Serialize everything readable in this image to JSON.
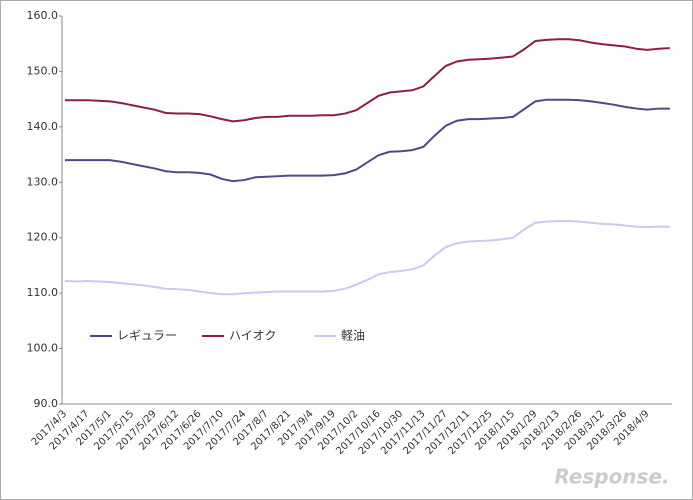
{
  "chart_data": {
    "type": "line",
    "categories": [
      "2017/4/3",
      null,
      "2017/4/17",
      null,
      "2017/5/1",
      null,
      "2017/5/15",
      null,
      "2017/5/29",
      null,
      "2017/6/12",
      null,
      "2017/6/26",
      null,
      "2017/7/10",
      null,
      "2017/7/24",
      null,
      "2017/8/7",
      null,
      "2017/8/21",
      null,
      "2017/9/4",
      null,
      "2017/9/19",
      null,
      "2017/10/2",
      null,
      "2017/10/16",
      null,
      "2017/10/30",
      null,
      "2017/11/13",
      null,
      "2017/11/27",
      null,
      "2017/12/11",
      null,
      "2017/12/25",
      null,
      "2018/1/15",
      null,
      "2018/1/29",
      null,
      "2018/2/13",
      null,
      "2018/2/26",
      null,
      "2018/3/12",
      null,
      "2018/3/26",
      null,
      "2018/4/9",
      null,
      null
    ],
    "series": [
      {
        "name": "レギュラー",
        "color": "#4b4b88",
        "values": [
          134.0,
          134.0,
          134.0,
          134.0,
          134.0,
          133.7,
          133.3,
          132.9,
          132.5,
          132.0,
          131.8,
          131.8,
          131.7,
          131.4,
          130.6,
          130.2,
          130.4,
          130.9,
          131.0,
          131.1,
          131.2,
          131.2,
          131.2,
          131.2,
          131.3,
          131.6,
          132.3,
          133.6,
          134.9,
          135.5,
          135.6,
          135.8,
          136.4,
          138.4,
          140.2,
          141.1,
          141.4,
          141.4,
          141.5,
          141.6,
          141.8,
          143.2,
          144.6,
          144.9,
          144.9,
          144.9,
          144.8,
          144.6,
          144.3,
          144.0,
          143.6,
          143.3,
          143.1,
          143.3,
          143.3
        ]
      },
      {
        "name": "ハイオク",
        "color": "#8c1d4c",
        "values": [
          144.8,
          144.8,
          144.8,
          144.7,
          144.6,
          144.3,
          143.9,
          143.5,
          143.1,
          142.5,
          142.4,
          142.4,
          142.3,
          141.9,
          141.4,
          141.0,
          141.2,
          141.6,
          141.8,
          141.8,
          142.0,
          142.0,
          142.0,
          142.1,
          142.1,
          142.4,
          143.0,
          144.3,
          145.6,
          146.2,
          146.4,
          146.6,
          147.3,
          149.2,
          151.0,
          151.8,
          152.1,
          152.2,
          152.3,
          152.5,
          152.7,
          154.0,
          155.5,
          155.7,
          155.8,
          155.8,
          155.6,
          155.2,
          154.9,
          154.7,
          154.5,
          154.1,
          153.9,
          154.1,
          154.2
        ]
      },
      {
        "name": "軽油",
        "color": "#c9c9f2",
        "values": [
          112.2,
          112.1,
          112.2,
          112.1,
          112.0,
          111.8,
          111.6,
          111.4,
          111.1,
          110.8,
          110.7,
          110.6,
          110.3,
          110.0,
          109.8,
          109.8,
          110.0,
          110.1,
          110.2,
          110.3,
          110.3,
          110.3,
          110.3,
          110.3,
          110.4,
          110.8,
          111.5,
          112.4,
          113.4,
          113.8,
          114.0,
          114.3,
          115.0,
          116.8,
          118.3,
          119.0,
          119.3,
          119.4,
          119.5,
          119.7,
          120.0,
          121.5,
          122.7,
          122.9,
          123.0,
          123.0,
          122.9,
          122.7,
          122.5,
          122.4,
          122.2,
          122.0,
          121.9,
          122.0,
          122.0
        ]
      }
    ],
    "ylim": [
      90,
      160
    ],
    "yticks": [
      {
        "value": 90,
        "label": "90.0"
      },
      {
        "value": 100,
        "label": "100.0"
      },
      {
        "value": 110,
        "label": "110.0"
      },
      {
        "value": 120,
        "label": "120.0"
      },
      {
        "value": 130,
        "label": "130.0"
      },
      {
        "value": 140,
        "label": "140.0"
      },
      {
        "value": 150,
        "label": "150.0"
      },
      {
        "value": 160,
        "label": "160.0"
      }
    ],
    "grid": false,
    "legend": "lower-left",
    "watermark": "Response."
  }
}
